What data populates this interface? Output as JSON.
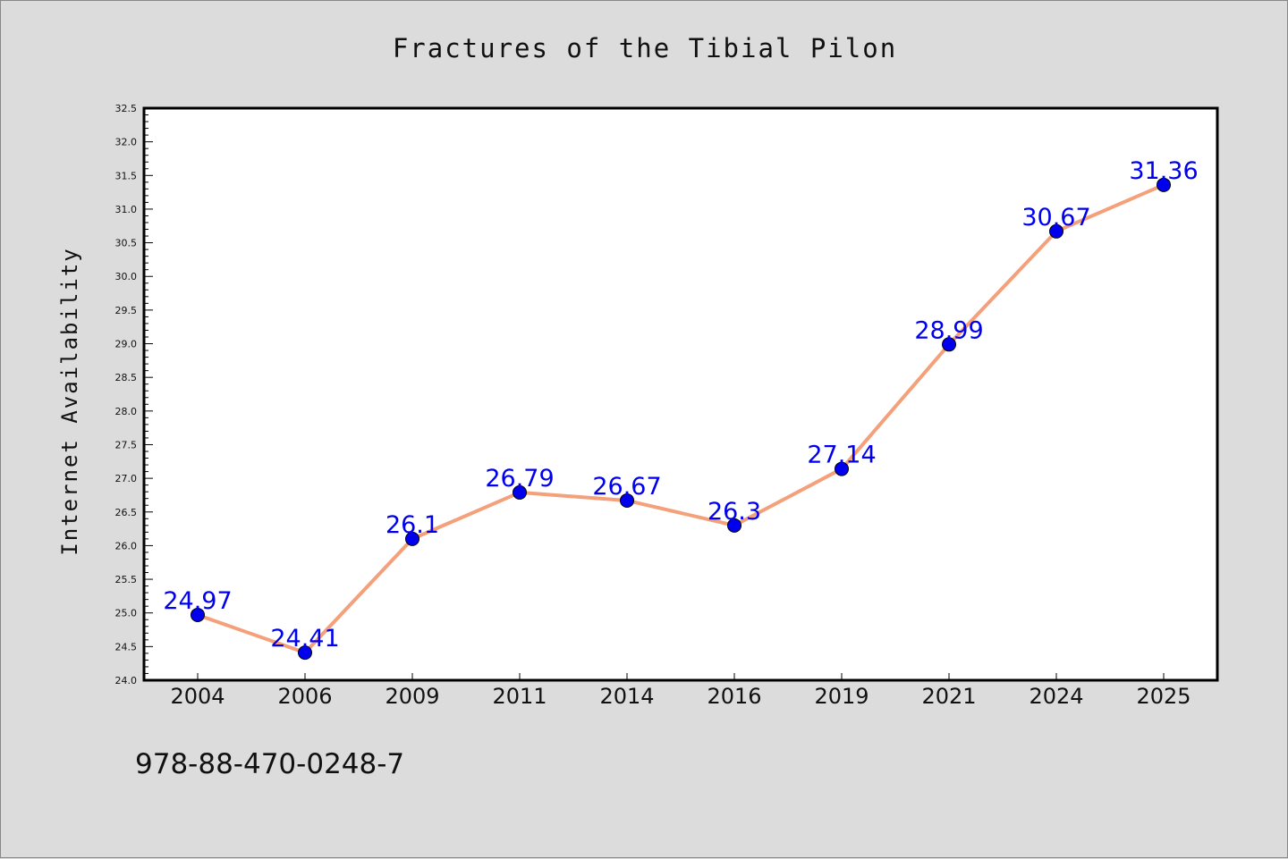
{
  "chart_data": {
    "type": "line",
    "title": "Fractures of the Tibial Pilon",
    "xlabel": "",
    "ylabel": "Internet Availability",
    "categories": [
      "2004",
      "2006",
      "2009",
      "2011",
      "2014",
      "2016",
      "2019",
      "2021",
      "2024",
      "2025"
    ],
    "series": [
      {
        "values": [
          24.97,
          24.41,
          26.1,
          26.79,
          26.67,
          26.3,
          27.14,
          28.99,
          30.67,
          31.36
        ]
      }
    ],
    "data_labels": [
      "24.97",
      "24.41",
      "26.1",
      "26.79",
      "26.67",
      "26.3",
      "27.14",
      "28.99",
      "30.67",
      "31.36"
    ],
    "ylim": [
      24.0,
      32.5
    ],
    "yticks": [
      "24.0",
      "24.5",
      "25.0",
      "25.5",
      "26.0",
      "26.5",
      "27.0",
      "27.5",
      "28.0",
      "28.5",
      "29.0",
      "29.5",
      "30.0",
      "30.5",
      "31.0",
      "31.5",
      "32.0",
      "32.5"
    ],
    "grid": false,
    "legend": "none",
    "line_color": "#f4a07a",
    "marker_color": "#0000ee",
    "label_color": "#0000ee"
  },
  "footer": {
    "text": "978-88-470-0248-7"
  }
}
